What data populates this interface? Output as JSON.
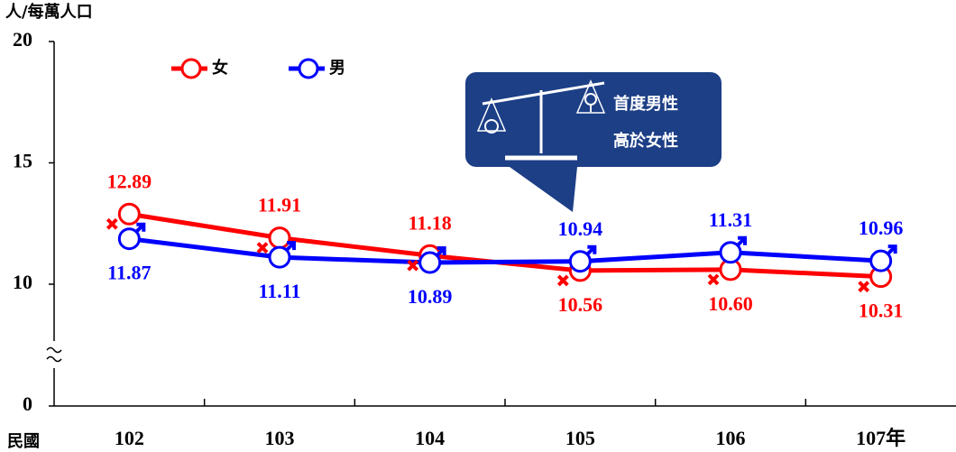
{
  "chart_data": {
    "type": "line",
    "y_axis_label": "人/每萬人口",
    "x_axis_label": "民國",
    "categories": [
      "102",
      "103",
      "104",
      "105",
      "106",
      "107年"
    ],
    "series": [
      {
        "name": "女",
        "color": "#ff0000",
        "values": [
          12.89,
          11.91,
          11.18,
          10.56,
          10.6,
          10.31
        ],
        "value_labels": [
          "12.89",
          "11.91",
          "11.18",
          "10.56",
          "10.60",
          "10.31"
        ]
      },
      {
        "name": "男",
        "color": "#0000ff",
        "values": [
          11.87,
          11.11,
          10.89,
          10.94,
          11.31,
          10.96
        ],
        "value_labels": [
          "11.87",
          "11.11",
          "10.89",
          "10.94",
          "11.31",
          "10.96"
        ]
      }
    ],
    "ylim": [
      0,
      20
    ],
    "yticks": [
      0,
      10,
      15,
      20
    ],
    "y_break": [
      0,
      10
    ],
    "callout": [
      "首度男性",
      "高於女性"
    ]
  }
}
